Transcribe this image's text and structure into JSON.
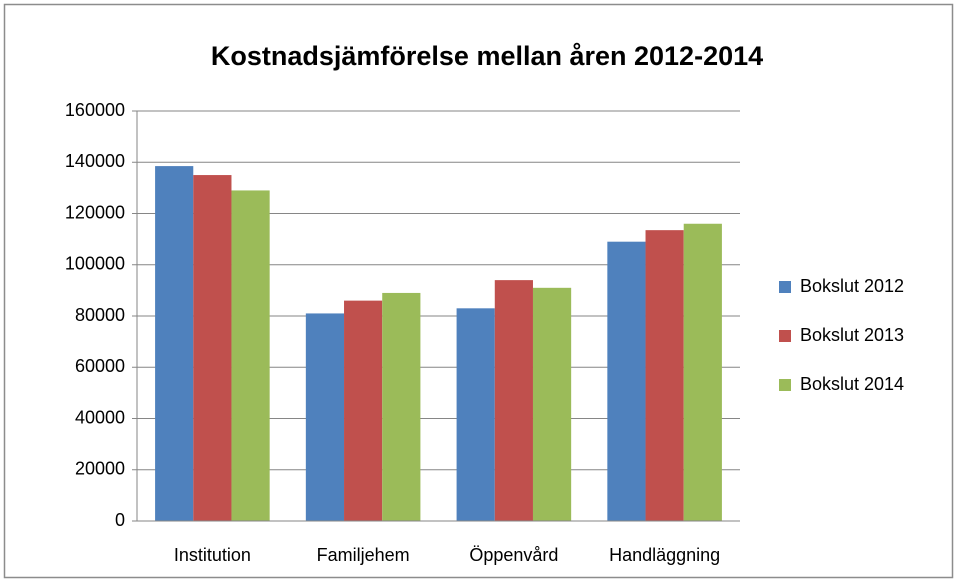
{
  "chart_data": {
    "type": "bar",
    "title": "Kostnadsjämförelse mellan åren 2012-2014",
    "categories": [
      "Institution",
      "Familjehem",
      "Öppenvård",
      "Handläggning"
    ],
    "series": [
      {
        "name": "Bokslut 2012",
        "color": "#4f81bd",
        "values": [
          138500,
          81000,
          83000,
          109000
        ]
      },
      {
        "name": "Bokslut 2013",
        "color": "#c0504d",
        "values": [
          135000,
          86000,
          94000,
          113500
        ]
      },
      {
        "name": "Bokslut 2014",
        "color": "#9bbb59",
        "values": [
          129000,
          89000,
          91000,
          116000
        ]
      }
    ],
    "ylim": [
      0,
      160000
    ],
    "yticks": [
      0,
      20000,
      40000,
      60000,
      80000,
      100000,
      120000,
      140000,
      160000
    ],
    "grid": true,
    "legend": "right"
  }
}
